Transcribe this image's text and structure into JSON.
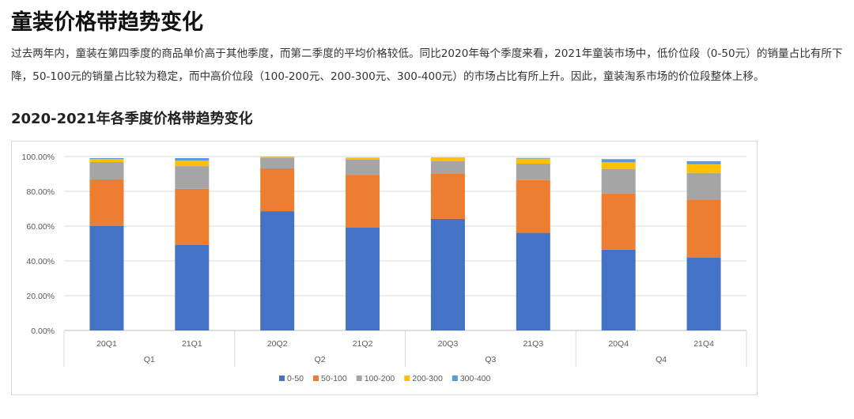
{
  "page": {
    "title": "童装价格带趋势变化",
    "paragraph": "过去两年内，童装在第四季度的商品单价高于其他季度，而第二季度的平均价格较低。同比2020年每个季度来看，2021年童装市场中，低价位段（0-50元）的销量占比有所下降，50-100元的销量占比较为稳定，而中高价位段（100-200元、200-300元、300-400元）的市场占比有所上升。因此，童装淘系市场的价位段整体上移。",
    "chart_heading": "2020-2021年各季度价格带趋势变化"
  },
  "chart_data": {
    "type": "bar",
    "stacked": true,
    "categories": [
      "20Q1",
      "21Q1",
      "20Q2",
      "21Q2",
      "20Q3",
      "21Q3",
      "20Q4",
      "21Q4"
    ],
    "groups": [
      {
        "label": "Q1",
        "span": 2
      },
      {
        "label": "Q2",
        "span": 2
      },
      {
        "label": "Q3",
        "span": 2
      },
      {
        "label": "Q4",
        "span": 2
      }
    ],
    "series": [
      {
        "name": "0-50",
        "color": "#4472C4",
        "values": [
          60.0,
          49.1,
          68.6,
          59.1,
          64.1,
          56.1,
          46.4,
          41.8
        ]
      },
      {
        "name": "50-100",
        "color": "#ED7D31",
        "values": [
          26.8,
          32.3,
          24.6,
          30.4,
          26.2,
          30.3,
          32.4,
          33.4
        ]
      },
      {
        "name": "100-200",
        "color": "#A5A5A5",
        "values": [
          10.0,
          13.1,
          5.9,
          8.7,
          7.0,
          9.5,
          14.1,
          15.4
        ]
      },
      {
        "name": "200-300",
        "color": "#FFC000",
        "values": [
          1.8,
          3.2,
          0.7,
          0.9,
          2.1,
          2.9,
          3.8,
          5.0
        ]
      },
      {
        "name": "300-400",
        "color": "#5B9BD5",
        "values": [
          0.5,
          1.4,
          0.1,
          0.2,
          0.1,
          0.4,
          1.8,
          1.7
        ]
      }
    ],
    "yticks": [
      "0.00%",
      "20.00%",
      "40.00%",
      "60.00%",
      "80.00%",
      "100.00%"
    ],
    "ylim": [
      0,
      100
    ],
    "grid": true,
    "legend": "bottom"
  }
}
